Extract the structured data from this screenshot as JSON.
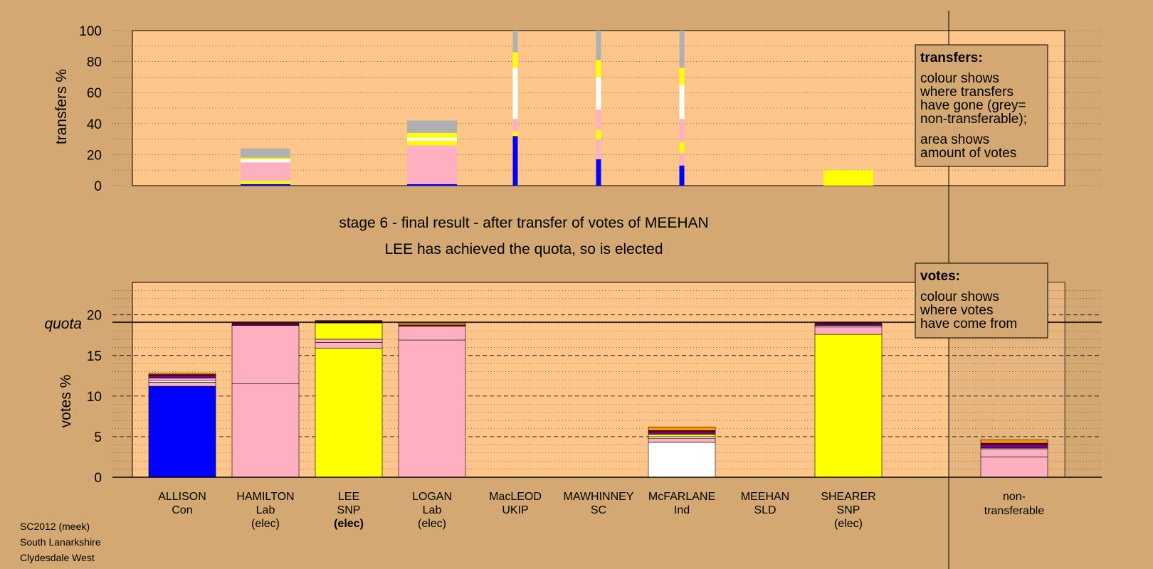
{
  "colors": {
    "background": "#d4a872",
    "panel": "#ffc68c",
    "con": "#0000ff",
    "lab": "#ffb0c0",
    "snp": "#ffff00",
    "ind": "#ffffff",
    "other_purple": "#7a0099",
    "other_darkred": "#8b0000",
    "other_orange": "#ff9900",
    "nontransferable": "#b0b0b0"
  },
  "titles": {
    "stage": "stage 6 - final result - after transfer of votes of MEEHAN",
    "result": "LEE has achieved the quota, so is elected"
  },
  "quota_label": "quota",
  "legend_transfers": {
    "heading": "transfers:",
    "lines": [
      "colour shows",
      "where transfers",
      "have gone (grey=",
      "non-transferable);",
      "area shows",
      "amount of votes"
    ]
  },
  "legend_votes": {
    "heading": "votes:",
    "lines": [
      "colour shows",
      "where votes",
      "have come from"
    ]
  },
  "footer": [
    "SC2012 (meek)",
    "South Lanarkshire",
    "Clydesdale West"
  ],
  "candidates": [
    {
      "name": "ALLISON",
      "party": "Con",
      "status": ""
    },
    {
      "name": "HAMILTON",
      "party": "Lab",
      "status": "(elec)"
    },
    {
      "name": "LEE",
      "party": "SNP",
      "status": "(elec)"
    },
    {
      "name": "LOGAN",
      "party": "Lab",
      "status": "(elec)"
    },
    {
      "name": "MacLEOD",
      "party": "UKIP",
      "status": ""
    },
    {
      "name": "MAWHINNEY",
      "party": "SC",
      "status": ""
    },
    {
      "name": "McFARLANE",
      "party": "Ind",
      "status": ""
    },
    {
      "name": "MEEHAN",
      "party": "SLD",
      "status": ""
    },
    {
      "name": "SHEARER",
      "party": "SNP",
      "status": "(elec)"
    }
  ],
  "nontransferable_label": [
    "non-",
    "transferable"
  ],
  "chart_data": [
    {
      "type": "bar",
      "stacked": true,
      "ylabel": "transfers %",
      "ylim": [
        0,
        100
      ],
      "yticks": [
        0,
        20,
        40,
        60,
        80,
        100
      ],
      "grid": true,
      "categories": [
        "ALLISON",
        "HAMILTON",
        "LEE",
        "LOGAN",
        "MacLEOD",
        "MAWHINNEY",
        "McFARLANE",
        "MEEHAN",
        "SHEARER"
      ],
      "note": "bar width shows amount of votes",
      "bars": [
        {
          "category": "HAMILTON",
          "width": "wide",
          "segments": [
            {
              "color": "#0000ff",
              "value": 1
            },
            {
              "color": "#ffff00",
              "value": 2
            },
            {
              "color": "#ffb0c0",
              "value": 12
            },
            {
              "color": "#ffffff",
              "value": 2
            },
            {
              "color": "#ffff00",
              "value": 1
            },
            {
              "color": "#b0b0b0",
              "value": 6
            }
          ]
        },
        {
          "category": "LOGAN",
          "width": "wide",
          "segments": [
            {
              "color": "#0000ff",
              "value": 1
            },
            {
              "color": "#ffb0c0",
              "value": 25
            },
            {
              "color": "#ffff00",
              "value": 3
            },
            {
              "color": "#ffffff",
              "value": 2
            },
            {
              "color": "#ffff00",
              "value": 3
            },
            {
              "color": "#b0b0b0",
              "value": 8
            }
          ]
        },
        {
          "category": "MacLEOD",
          "width": "thin",
          "segments": [
            {
              "color": "#0000ff",
              "value": 32
            },
            {
              "color": "#ffff00",
              "value": 3
            },
            {
              "color": "#ffb0c0",
              "value": 8
            },
            {
              "color": "#ffffff",
              "value": 33
            },
            {
              "color": "#ffff00",
              "value": 10
            },
            {
              "color": "#b0b0b0",
              "value": 14
            }
          ]
        },
        {
          "category": "MAWHINNEY",
          "width": "thin",
          "segments": [
            {
              "color": "#0000ff",
              "value": 17
            },
            {
              "color": "#ffb0c0",
              "value": 13
            },
            {
              "color": "#ffff00",
              "value": 6
            },
            {
              "color": "#ffb0c0",
              "value": 13
            },
            {
              "color": "#ffffff",
              "value": 21
            },
            {
              "color": "#ffff00",
              "value": 11
            },
            {
              "color": "#b0b0b0",
              "value": 19
            }
          ]
        },
        {
          "category": "McFARLANE",
          "width": "thin",
          "segments": [
            {
              "color": "#0000ff",
              "value": 13
            },
            {
              "color": "#ffb0c0",
              "value": 8
            },
            {
              "color": "#ffff00",
              "value": 7
            },
            {
              "color": "#ffb0c0",
              "value": 15
            },
            {
              "color": "#ffffff",
              "value": 22
            },
            {
              "color": "#ffff00",
              "value": 11
            },
            {
              "color": "#b0b0b0",
              "value": 24
            }
          ]
        },
        {
          "category": "SHEARER",
          "width": "wide",
          "segments": [
            {
              "color": "#ffff00",
              "value": 10
            }
          ]
        }
      ]
    },
    {
      "type": "bar",
      "stacked": true,
      "ylabel": "votes %",
      "ylim": [
        0,
        24
      ],
      "yticks": [
        0,
        5,
        10,
        15,
        20
      ],
      "quota": 19.1,
      "grid": true,
      "categories": [
        "ALLISON",
        "HAMILTON",
        "LEE",
        "LOGAN",
        "MacLEOD",
        "MAWHINNEY",
        "McFARLANE",
        "MEEHAN",
        "SHEARER",
        "non-transferable"
      ],
      "bars": [
        {
          "category": "ALLISON",
          "segments": [
            {
              "color": "#0000ff",
              "value": 11.2
            },
            {
              "color": "#ffb0c0",
              "value": 0.5
            },
            {
              "color": "#ffffff",
              "value": 0.2
            },
            {
              "color": "#ffb0c0",
              "value": 0.3
            },
            {
              "color": "#7a0099",
              "value": 0.3
            },
            {
              "color": "#8b0000",
              "value": 0.15
            },
            {
              "color": "#ff9900",
              "value": 0.15
            }
          ]
        },
        {
          "category": "HAMILTON",
          "segments": [
            {
              "color": "#ffb0c0",
              "value": 11.5
            },
            {
              "color": "#ffb0c0",
              "value": 7.2
            },
            {
              "color": "#7a0099",
              "value": 0.15
            },
            {
              "color": "#8b0000",
              "value": 0.15
            }
          ]
        },
        {
          "category": "LEE",
          "segments": [
            {
              "color": "#ffff00",
              "value": 15.9
            },
            {
              "color": "#ffb0c0",
              "value": 0.7
            },
            {
              "color": "#ffb0c0",
              "value": 0.4
            },
            {
              "color": "#ffff00",
              "value": 2.0
            },
            {
              "color": "#7a0099",
              "value": 0.15
            },
            {
              "color": "#8b0000",
              "value": 0.15
            }
          ]
        },
        {
          "category": "LOGAN",
          "segments": [
            {
              "color": "#ffb0c0",
              "value": 16.9
            },
            {
              "color": "#ffb0c0",
              "value": 1.7
            },
            {
              "color": "#8b0000",
              "value": 0.15
            },
            {
              "color": "#ff9900",
              "value": 0.25
            }
          ]
        },
        {
          "category": "MacLEOD",
          "segments": []
        },
        {
          "category": "MAWHINNEY",
          "segments": []
        },
        {
          "category": "McFARLANE",
          "segments": [
            {
              "color": "#ffffff",
              "value": 4.3
            },
            {
              "color": "#ffb0c0",
              "value": 0.5
            },
            {
              "color": "#ffffff",
              "value": 0.2
            },
            {
              "color": "#ffff00",
              "value": 0.3
            },
            {
              "color": "#7a0099",
              "value": 0.3
            },
            {
              "color": "#8b0000",
              "value": 0.15
            },
            {
              "color": "#ff9900",
              "value": 0.45
            }
          ]
        },
        {
          "category": "MEEHAN",
          "segments": []
        },
        {
          "category": "SHEARER",
          "segments": [
            {
              "color": "#ffff00",
              "value": 17.6
            },
            {
              "color": "#ffb0c0",
              "value": 0.9
            },
            {
              "color": "#ffb0c0",
              "value": 0.2
            },
            {
              "color": "#7a0099",
              "value": 0.2
            },
            {
              "color": "#8b0000",
              "value": 0.1
            }
          ]
        },
        {
          "category": "non-transferable",
          "segments": [
            {
              "color": "#ffb0c0",
              "value": 2.5
            },
            {
              "color": "#ffb0c0",
              "value": 1.0
            },
            {
              "color": "#ffffff",
              "value": 0.1
            },
            {
              "color": "#7a0099",
              "value": 0.4
            },
            {
              "color": "#8b0000",
              "value": 0.2
            },
            {
              "color": "#ff9900",
              "value": 0.4
            }
          ]
        }
      ]
    }
  ]
}
